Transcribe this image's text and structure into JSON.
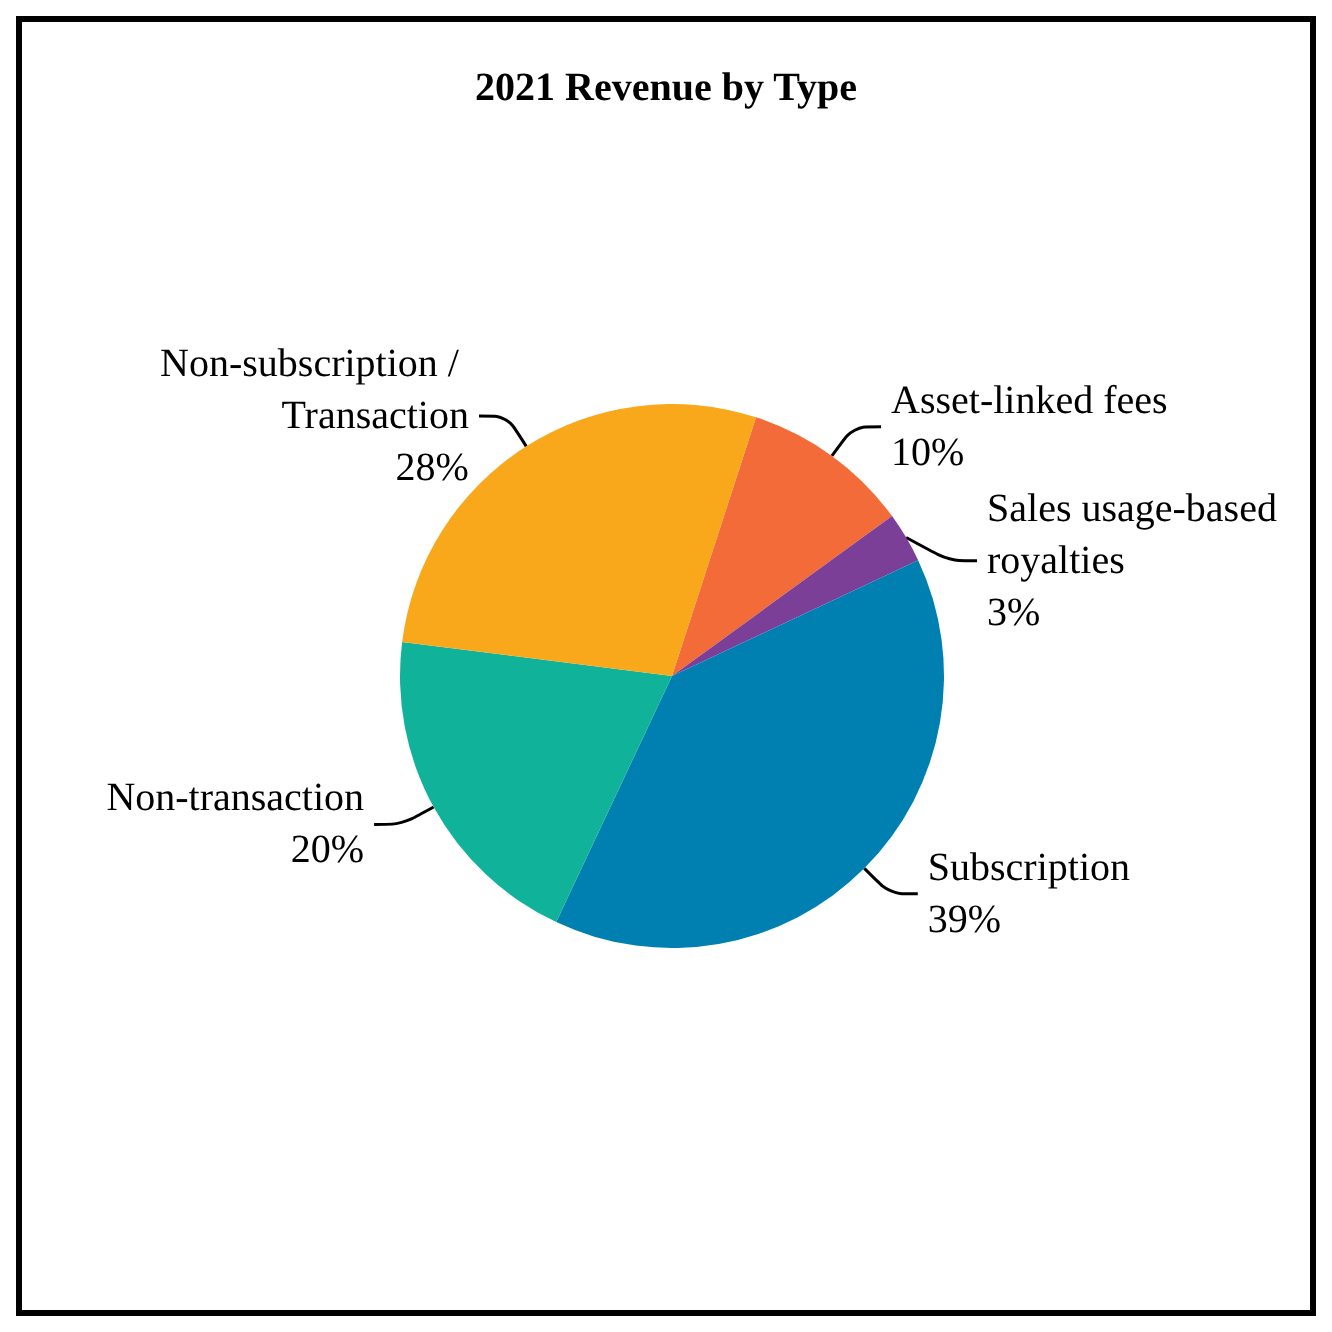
{
  "chart_data": {
    "type": "pie",
    "title": "2021 Revenue by Type",
    "categories": [
      "Asset-linked fees",
      "Sales usage-based royalties",
      "Subscription",
      "Non-transaction",
      "Non-subscription / Transaction"
    ],
    "values": [
      10,
      3,
      39,
      20,
      28
    ],
    "value_labels": [
      "10%",
      "3%",
      "39%",
      "20%",
      "28%"
    ],
    "colors": [
      "#f26b38",
      "#7b3f98",
      "#0080b0",
      "#10b39a",
      "#f9a81c"
    ],
    "legend": false
  }
}
